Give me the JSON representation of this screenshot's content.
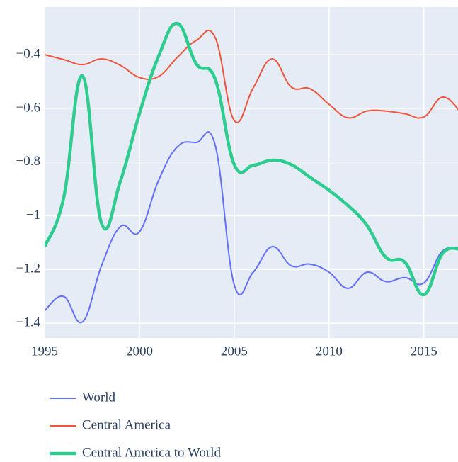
{
  "chart_data": {
    "type": "line",
    "x": [
      1995,
      1996,
      1997,
      1998,
      1999,
      2000,
      2001,
      2002,
      2003,
      2004,
      2005,
      2006,
      2007,
      2008,
      2009,
      2010,
      2011,
      2012,
      2013,
      2014,
      2015,
      2016,
      2017
    ],
    "series": [
      {
        "name": "World",
        "color": "#636efa",
        "width": 2,
        "values": [
          -1.353,
          -1.3,
          -1.395,
          -1.186,
          -1.04,
          -1.06,
          -0.87,
          -0.743,
          -0.727,
          -0.738,
          -1.257,
          -1.21,
          -1.115,
          -1.186,
          -1.18,
          -1.21,
          -1.27,
          -1.21,
          -1.245,
          -1.23,
          -1.25,
          -1.13,
          -1.13
        ]
      },
      {
        "name": "Central America",
        "color": "#ef553b",
        "width": 2,
        "values": [
          -0.4,
          -0.418,
          -0.437,
          -0.416,
          -0.44,
          -0.485,
          -0.482,
          -0.41,
          -0.347,
          -0.337,
          -0.645,
          -0.524,
          -0.416,
          -0.52,
          -0.527,
          -0.585,
          -0.635,
          -0.61,
          -0.61,
          -0.62,
          -0.632,
          -0.558,
          -0.62
        ]
      },
      {
        "name": "Central America to World",
        "color": "#2ecc8e",
        "width": 4.5,
        "values": [
          -1.115,
          -0.935,
          -0.48,
          -1.028,
          -0.87,
          -0.62,
          -0.408,
          -0.284,
          -0.434,
          -0.492,
          -0.809,
          -0.812,
          -0.793,
          -0.809,
          -0.857,
          -0.905,
          -0.962,
          -1.036,
          -1.155,
          -1.173,
          -1.294,
          -1.139,
          -1.125
        ]
      }
    ],
    "xlim": [
      1995,
      2016.8
    ],
    "xticks": [
      1995,
      2000,
      2005,
      2010,
      2015
    ],
    "ylim": [
      -1.455,
      -0.223
    ],
    "yticks": [
      {
        "value": -1.4,
        "label": "−1.4"
      },
      {
        "value": -1.2,
        "label": "−1.2"
      },
      {
        "value": -1,
        "label": "−1"
      },
      {
        "value": -0.8,
        "label": "−0.8"
      },
      {
        "value": -0.6,
        "label": "−0.6"
      },
      {
        "value": -0.4,
        "label": "−0.4"
      }
    ],
    "grid": true
  }
}
